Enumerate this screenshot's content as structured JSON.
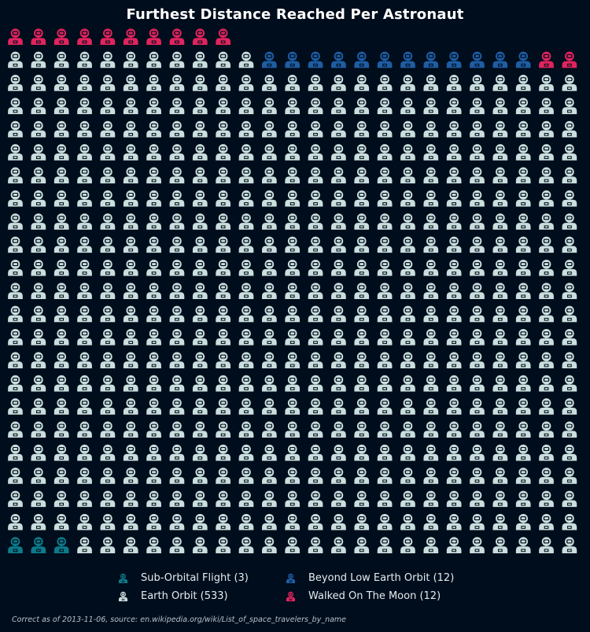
{
  "page": {
    "title": "Furthest Distance Reached Per Astronaut",
    "footnote": "Correct as of 2013-11-06, source: en.wikipedia.org/wiki/List_of_space_travelers_by_name"
  },
  "colors": {
    "background": "#000d1c",
    "sub_orbital": "#0c7a8a",
    "earth_orbit": "#c9dedd",
    "beyond_leo": "#1e5da3",
    "moon": "#e0245e"
  },
  "chart_data": {
    "type": "pictogram",
    "title": "Furthest Distance Reached Per Astronaut",
    "icon": "astronaut-icon",
    "icons_per_row": 25,
    "fill_order": "bottom-left to top, row by row",
    "legend_placement": "bottom-center",
    "categories": [
      {
        "name": "Sub-Orbital Flight",
        "count": 3,
        "label": "Sub-Orbital Flight (3)",
        "color": "#0c7a8a"
      },
      {
        "name": "Earth Orbit",
        "count": 533,
        "label": "Earth Orbit (533)",
        "color": "#c9dedd"
      },
      {
        "name": "Beyond Low Earth Orbit",
        "count": 12,
        "label": "Beyond Low Earth Orbit (12)",
        "color": "#1e5da3"
      },
      {
        "name": "Walked On The Moon",
        "count": 12,
        "label": "Walked On The Moon (12)",
        "color": "#e0245e"
      }
    ],
    "total": 560
  }
}
